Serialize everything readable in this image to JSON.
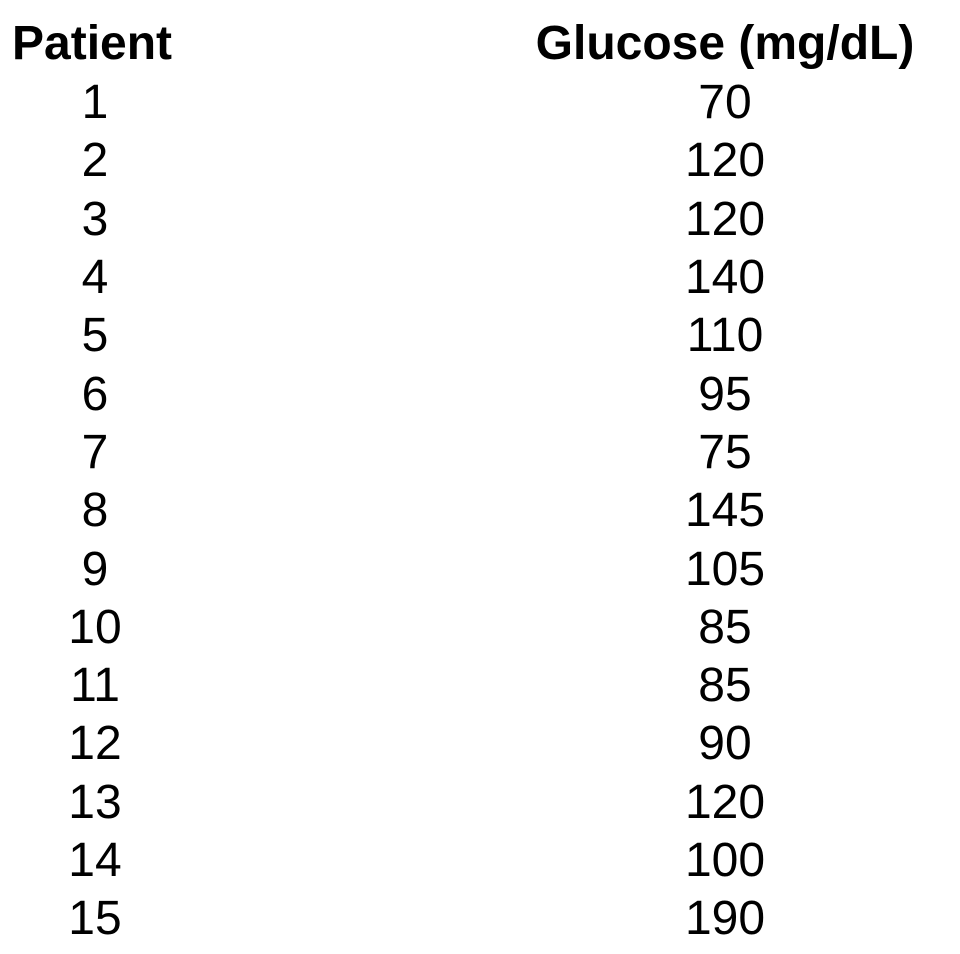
{
  "table": {
    "headers": {
      "patient": "Patient",
      "glucose": "Glucose (mg/dL)"
    },
    "rows": [
      {
        "patient": "1",
        "glucose": "70"
      },
      {
        "patient": "2",
        "glucose": "120"
      },
      {
        "patient": "3",
        "glucose": "120"
      },
      {
        "patient": "4",
        "glucose": "140"
      },
      {
        "patient": "5",
        "glucose": "110"
      },
      {
        "patient": "6",
        "glucose": "95"
      },
      {
        "patient": "7",
        "glucose": "75"
      },
      {
        "patient": "8",
        "glucose": "145"
      },
      {
        "patient": "9",
        "glucose": "105"
      },
      {
        "patient": "10",
        "glucose": "85"
      },
      {
        "patient": "11",
        "glucose": "85"
      },
      {
        "patient": "12",
        "glucose": "90"
      },
      {
        "patient": "13",
        "glucose": "120"
      },
      {
        "patient": "14",
        "glucose": "100"
      },
      {
        "patient": "15",
        "glucose": "190"
      }
    ]
  }
}
